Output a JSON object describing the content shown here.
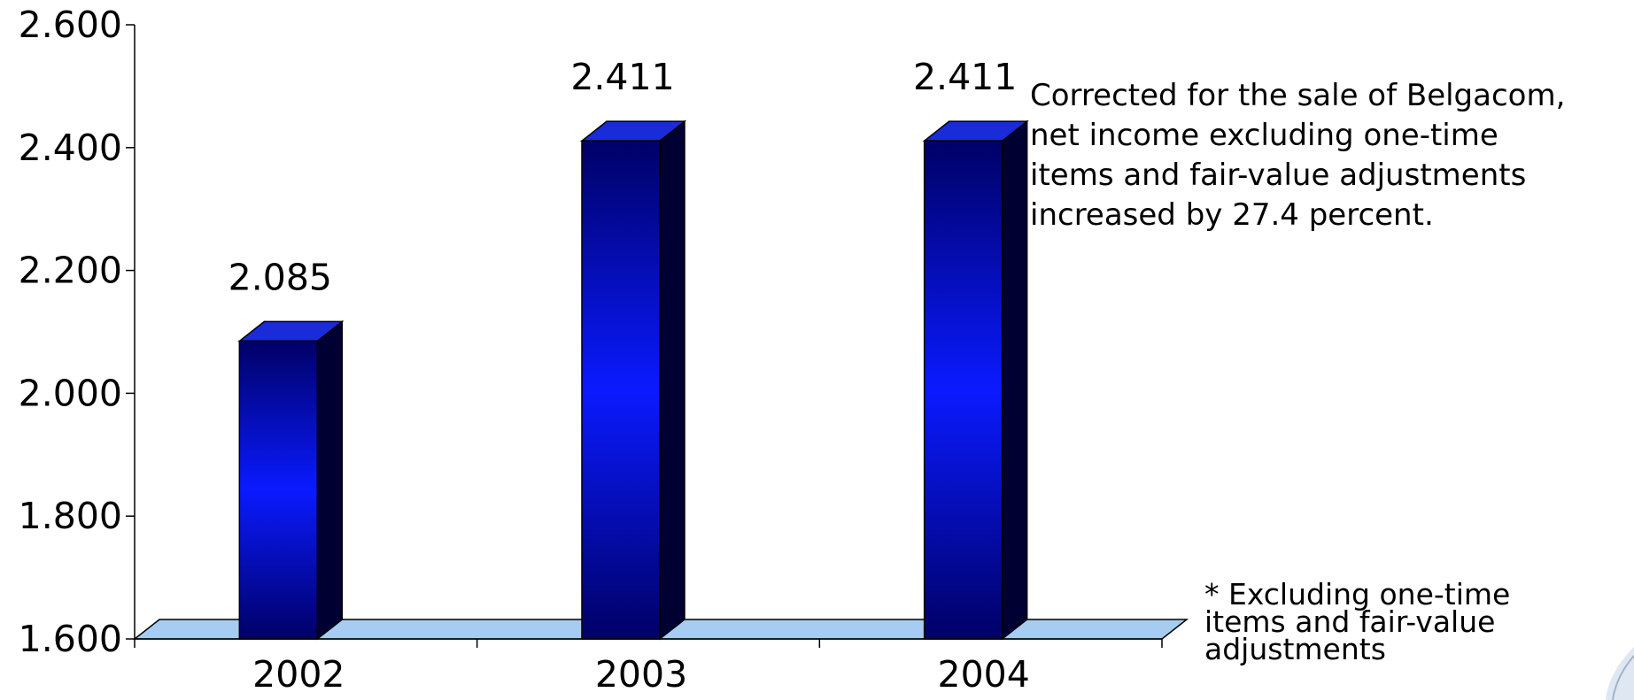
{
  "chart_data": {
    "type": "bar",
    "categories": [
      "2002",
      "2003",
      "2004"
    ],
    "values": [
      2085,
      2411,
      2411
    ],
    "value_labels": [
      "2.085",
      "2.411",
      "2.411"
    ],
    "y_ticks": [
      1600,
      1800,
      2000,
      2200,
      2400,
      2600
    ],
    "y_tick_labels": [
      "1.600",
      "1.800",
      "2.000",
      "2.200",
      "2.400",
      "2.600"
    ],
    "ylim": [
      1600,
      2600
    ],
    "title": "",
    "xlabel": "",
    "ylabel": "",
    "grid": false,
    "style": "3d-column",
    "colors": {
      "bar_front_edge": "#000066",
      "bar_front_center": "#0a1aff",
      "bar_side": "#000033",
      "bar_top": "#1a2bd9",
      "floor": "#a6ccf2",
      "axis": "#000000"
    }
  },
  "annotation": "Corrected for the sale of Belgacom,\nnet income excluding one-time\nitems and fair-value adjustments\nincreased by 27.4 percent.",
  "footnote": "* Excluding one-time\nitems and fair-value\nadjustments"
}
